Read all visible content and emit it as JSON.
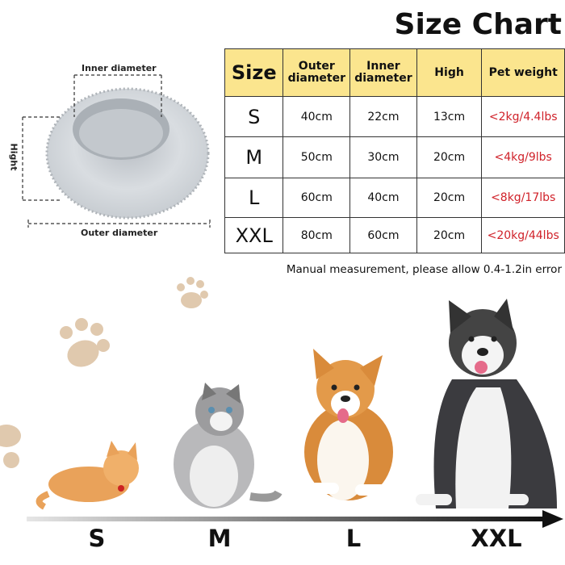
{
  "title": "Size Chart",
  "diagram": {
    "inner_label": "Inner diameter",
    "height_label": "Hight",
    "outer_label": "Outer diameter"
  },
  "table": {
    "headers": [
      "Size",
      "Outer diameter",
      "Inner diameter",
      "High",
      "Pet weight"
    ],
    "rows": [
      [
        "S",
        "40cm",
        "22cm",
        "13cm",
        "<2kg/4.4lbs"
      ],
      [
        "M",
        "50cm",
        "30cm",
        "20cm",
        "<4kg/9lbs"
      ],
      [
        "L",
        "60cm",
        "40cm",
        "20cm",
        "<8kg/17lbs"
      ],
      [
        "XXL",
        "80cm",
        "60cm",
        "20cm",
        "<20kg/44lbs"
      ]
    ]
  },
  "note": "Manual measurement, please allow 0.4-1.2in error",
  "scale_labels": [
    "S",
    "M",
    "L",
    "XXL"
  ]
}
